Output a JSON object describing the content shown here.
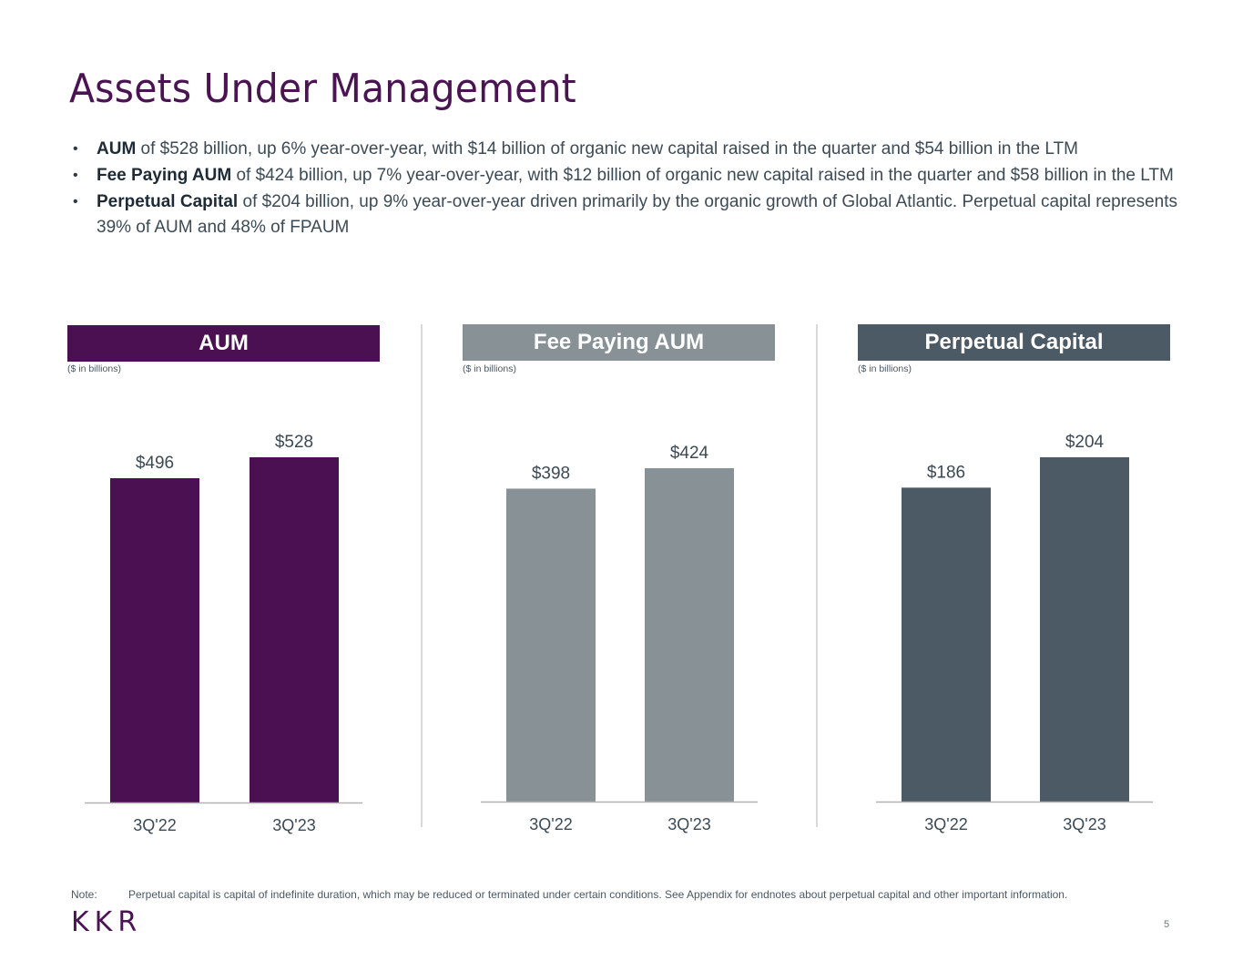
{
  "page": {
    "title": "Assets Under Management",
    "bullets": [
      {
        "bold": "AUM",
        "text": " of $528 billion, up 6% year-over-year, with $14 billion of organic new capital raised in the quarter and $54 billion in the LTM"
      },
      {
        "bold": "Fee Paying AUM",
        "text": " of $424 billion, up 7% year-over-year, with $12 billion of organic new capital raised in the quarter and $58 billion in the LTM"
      },
      {
        "bold": "Perpetual Capital",
        "text": " of $204 billion, up 9% year-over-year driven primarily by the organic growth of Global Atlantic. Perpetual capital represents 39% of AUM and 48% of FPAUM"
      }
    ],
    "bullet_glyph": "•",
    "note_label": "Note:",
    "note_text": "Perpetual capital is capital of indefinite duration, which may be reduced or terminated under certain conditions. See Appendix for endnotes about perpetual capital and other important information.",
    "logo": "KKR",
    "page_number": "5"
  },
  "colors": {
    "title": "#4a1352",
    "aum": "#4a1052",
    "fee_paying_aum": "#879196",
    "perpetual_capital": "#4b5a64",
    "axis": "#b3b3b3",
    "label_text": "#3b4a55"
  },
  "chart_data": [
    {
      "type": "bar",
      "title": "AUM",
      "subtitle": "($ in billions)",
      "categories": [
        "3Q'22",
        "3Q'23"
      ],
      "values": [
        496,
        528
      ],
      "value_labels": [
        "$496",
        "$528"
      ],
      "xlabel": "",
      "ylabel": "",
      "ylim": [
        0,
        528
      ],
      "grid": false,
      "color_key": "aum"
    },
    {
      "type": "bar",
      "title": "Fee Paying AUM",
      "subtitle": "($ in billions)",
      "categories": [
        "3Q'22",
        "3Q'23"
      ],
      "values": [
        398,
        424
      ],
      "value_labels": [
        "$398",
        "$424"
      ],
      "xlabel": "",
      "ylabel": "",
      "ylim": [
        0,
        424
      ],
      "grid": false,
      "color_key": "fee_paying_aum"
    },
    {
      "type": "bar",
      "title": "Perpetual Capital",
      "subtitle": "($ in billions)",
      "categories": [
        "3Q'22",
        "3Q'23"
      ],
      "values": [
        186,
        204
      ],
      "value_labels": [
        "$186",
        "$204"
      ],
      "xlabel": "",
      "ylabel": "",
      "ylim": [
        0,
        204
      ],
      "grid": false,
      "color_key": "perpetual_capital"
    }
  ]
}
